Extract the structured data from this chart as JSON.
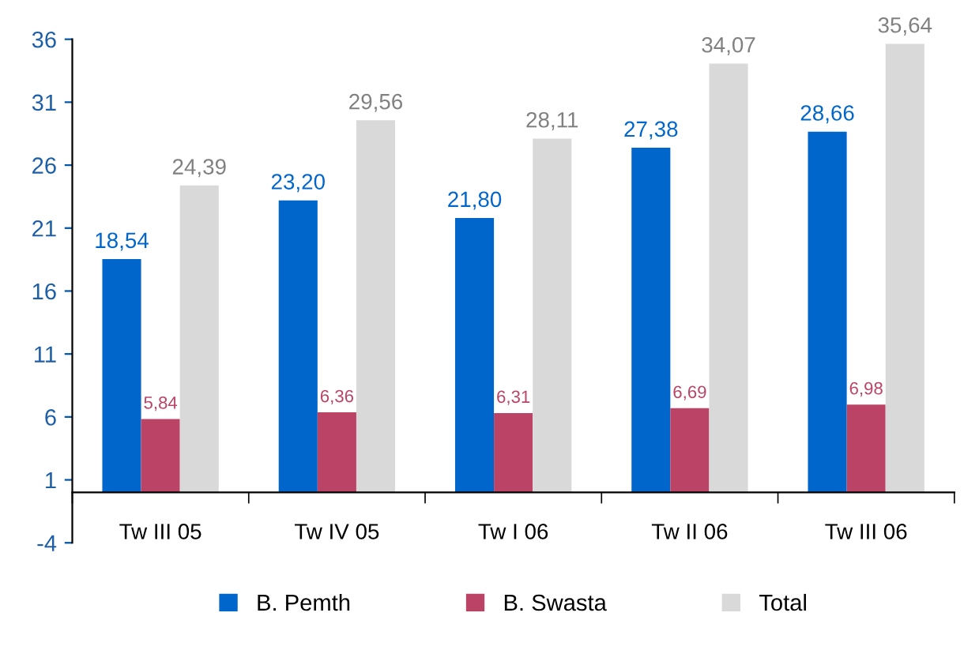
{
  "chart_data": {
    "type": "bar",
    "categories": [
      "Tw III 05",
      "Tw IV 05",
      "Tw I 06",
      "Tw II 06",
      "Tw III 06"
    ],
    "series": [
      {
        "name": "B. Pemth",
        "color": "#0066cc",
        "values": [
          18.54,
          23.2,
          21.8,
          27.38,
          28.66
        ],
        "value_labels": [
          "18,54",
          "23,20",
          "21,80",
          "27,38",
          "28,66"
        ]
      },
      {
        "name": "B. Swasta",
        "color": "#bb4466",
        "values": [
          5.84,
          6.36,
          6.31,
          6.69,
          6.98
        ],
        "value_labels": [
          "5,84",
          "6,36",
          "6,31",
          "6,69",
          "6,98"
        ]
      },
      {
        "name": "Total",
        "color": "#d9d9d9",
        "values": [
          24.39,
          29.56,
          28.11,
          34.07,
          35.64
        ],
        "value_labels": [
          "24,39",
          "29,56",
          "28,11",
          "34,07",
          "35,64"
        ]
      }
    ],
    "ylim": [
      -4,
      36
    ],
    "yticks": [
      -4,
      1,
      6,
      11,
      16,
      21,
      26,
      31,
      36
    ],
    "grid": false,
    "legend": "bottom"
  }
}
